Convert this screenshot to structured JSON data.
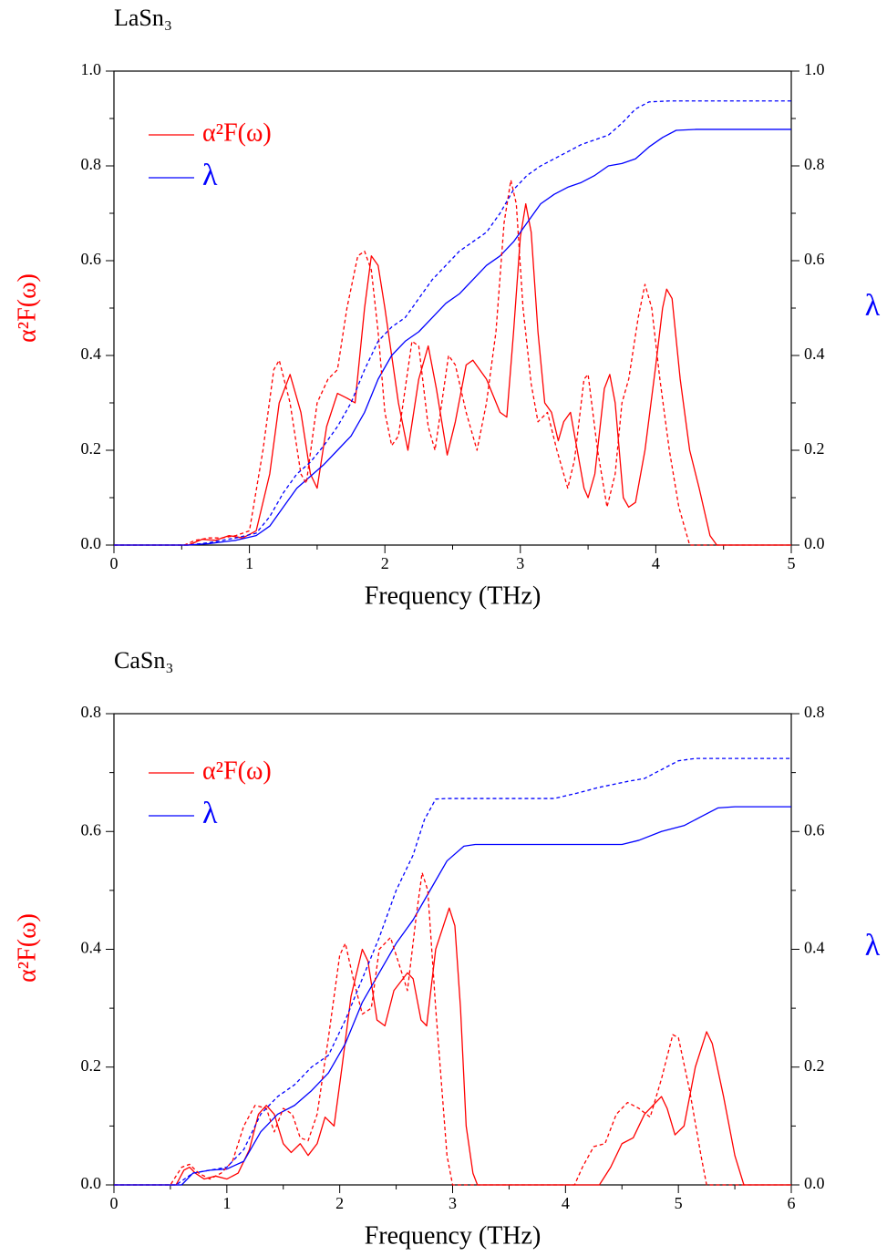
{
  "chart_data": [
    {
      "type": "line",
      "title": "LaSn₃",
      "xlabel": "Frequency (THz)",
      "ylabel": "α²F(ω)",
      "y2label": "λ",
      "xlim": [
        0,
        5
      ],
      "xticks": [
        0,
        1,
        2,
        3,
        4,
        5
      ],
      "ylim": [
        0,
        1
      ],
      "yticks": [
        {
          "value": 0,
          "label": "0.0"
        },
        {
          "value": 0.2,
          "label": "0.2"
        },
        {
          "value": 0.4,
          "label": "0.4"
        },
        {
          "value": 0.6,
          "label": "0.6"
        },
        {
          "value": 0.8,
          "label": "0.8"
        },
        {
          "value": 1,
          "label": "1.0"
        }
      ],
      "y2lim": [
        0,
        1
      ],
      "y2ticks": [
        {
          "value": 0,
          "label": "0.0"
        },
        {
          "value": 0.2,
          "label": "0.2"
        },
        {
          "value": 0.4,
          "label": "0.4"
        },
        {
          "value": 0.6,
          "label": "0.6"
        },
        {
          "value": 0.8,
          "label": "0.8"
        },
        {
          "value": 1,
          "label": "1.0"
        }
      ],
      "series": [
        {
          "name": "α²F(ω)",
          "color": "#ff0000",
          "x": [
            0,
            0.55,
            0.65,
            0.75,
            0.85,
            0.95,
            1.05,
            1.15,
            1.22,
            1.3,
            1.38,
            1.45,
            1.5,
            1.57,
            1.65,
            1.72,
            1.78,
            1.85,
            1.9,
            1.95,
            2.0,
            2.1,
            2.17,
            2.25,
            2.32,
            2.38,
            2.46,
            2.52,
            2.6,
            2.65,
            2.75,
            2.85,
            2.9,
            2.95,
            3.0,
            3.04,
            3.08,
            3.13,
            3.18,
            3.23,
            3.28,
            3.32,
            3.37,
            3.42,
            3.47,
            3.5,
            3.55,
            3.62,
            3.66,
            3.7,
            3.76,
            3.8,
            3.85,
            3.92,
            4.0,
            4.05,
            4.08,
            4.12,
            4.18,
            4.25,
            4.32,
            4.4,
            4.45,
            5
          ],
          "values": [
            0,
            0,
            0.012,
            0.01,
            0.02,
            0.015,
            0.03,
            0.15,
            0.3,
            0.36,
            0.28,
            0.15,
            0.12,
            0.25,
            0.32,
            0.31,
            0.3,
            0.5,
            0.61,
            0.59,
            0.5,
            0.3,
            0.2,
            0.35,
            0.42,
            0.33,
            0.19,
            0.26,
            0.38,
            0.39,
            0.35,
            0.28,
            0.27,
            0.45,
            0.65,
            0.72,
            0.66,
            0.45,
            0.3,
            0.28,
            0.22,
            0.26,
            0.28,
            0.2,
            0.12,
            0.1,
            0.15,
            0.33,
            0.36,
            0.3,
            0.1,
            0.08,
            0.09,
            0.2,
            0.38,
            0.5,
            0.54,
            0.52,
            0.35,
            0.2,
            0.12,
            0.02,
            0,
            0
          ]
        },
        {
          "name": "λ",
          "color": "#0000ff",
          "axis": "y2",
          "x": [
            0,
            0.55,
            0.7,
            0.9,
            1.05,
            1.15,
            1.25,
            1.35,
            1.45,
            1.55,
            1.65,
            1.75,
            1.85,
            1.95,
            2.05,
            2.15,
            2.25,
            2.35,
            2.45,
            2.55,
            2.65,
            2.75,
            2.85,
            2.95,
            3.05,
            3.15,
            3.25,
            3.35,
            3.45,
            3.55,
            3.65,
            3.75,
            3.85,
            3.95,
            4.05,
            4.15,
            4.3,
            5
          ],
          "values": [
            0,
            0,
            0.003,
            0.01,
            0.02,
            0.04,
            0.08,
            0.12,
            0.145,
            0.17,
            0.2,
            0.23,
            0.28,
            0.35,
            0.4,
            0.43,
            0.45,
            0.48,
            0.51,
            0.53,
            0.56,
            0.59,
            0.61,
            0.64,
            0.68,
            0.72,
            0.74,
            0.755,
            0.765,
            0.78,
            0.8,
            0.805,
            0.815,
            0.84,
            0.86,
            0.875,
            0.877,
            0.877
          ]
        },
        {
          "color": "#ff0000",
          "dashed": true,
          "x": [
            0,
            0.52,
            0.6,
            0.7,
            0.8,
            0.9,
            1.0,
            1.1,
            1.18,
            1.22,
            1.3,
            1.38,
            1.42,
            1.5,
            1.58,
            1.65,
            1.72,
            1.8,
            1.85,
            1.9,
            1.95,
            2.0,
            2.05,
            2.1,
            2.2,
            2.25,
            2.32,
            2.37,
            2.47,
            2.52,
            2.6,
            2.68,
            2.75,
            2.82,
            2.88,
            2.93,
            2.97,
            3.02,
            3.08,
            3.13,
            3.2,
            3.27,
            3.35,
            3.4,
            3.47,
            3.5,
            3.57,
            3.64,
            3.7,
            3.75,
            3.8,
            3.87,
            3.92,
            3.97,
            4.03,
            4.1,
            4.17,
            4.25,
            5
          ],
          "values": [
            0,
            0,
            0.01,
            0.015,
            0.015,
            0.02,
            0.03,
            0.2,
            0.37,
            0.39,
            0.3,
            0.15,
            0.13,
            0.3,
            0.35,
            0.37,
            0.5,
            0.61,
            0.62,
            0.58,
            0.45,
            0.28,
            0.21,
            0.23,
            0.43,
            0.42,
            0.25,
            0.2,
            0.4,
            0.38,
            0.28,
            0.2,
            0.3,
            0.45,
            0.68,
            0.77,
            0.72,
            0.5,
            0.34,
            0.26,
            0.28,
            0.2,
            0.12,
            0.18,
            0.35,
            0.36,
            0.2,
            0.08,
            0.15,
            0.3,
            0.35,
            0.48,
            0.55,
            0.5,
            0.35,
            0.2,
            0.08,
            0,
            0
          ]
        },
        {
          "color": "#0000ff",
          "dashed": true,
          "axis": "y2",
          "x": [
            0,
            0.55,
            0.7,
            0.9,
            1.05,
            1.15,
            1.25,
            1.35,
            1.45,
            1.55,
            1.65,
            1.75,
            1.85,
            1.95,
            2.05,
            2.15,
            2.25,
            2.35,
            2.45,
            2.55,
            2.65,
            2.75,
            2.85,
            2.95,
            3.05,
            3.15,
            3.25,
            3.35,
            3.45,
            3.55,
            3.65,
            3.75,
            3.85,
            3.95,
            4.1,
            5
          ],
          "values": [
            0,
            0,
            0.005,
            0.015,
            0.025,
            0.06,
            0.11,
            0.15,
            0.175,
            0.21,
            0.25,
            0.3,
            0.37,
            0.43,
            0.46,
            0.48,
            0.52,
            0.56,
            0.59,
            0.62,
            0.64,
            0.66,
            0.7,
            0.75,
            0.78,
            0.8,
            0.815,
            0.83,
            0.845,
            0.855,
            0.865,
            0.89,
            0.92,
            0.935,
            0.937,
            0.937
          ]
        }
      ]
    },
    {
      "type": "line",
      "title": "CaSn₃",
      "xlabel": "Frequency (THz)",
      "ylabel": "α²F(ω)",
      "y2label": "λ",
      "xlim": [
        0,
        6
      ],
      "xticks": [
        0,
        1,
        2,
        3,
        4,
        5,
        6
      ],
      "ylim": [
        0,
        0.8
      ],
      "yticks": [
        {
          "value": 0,
          "label": "0.0"
        },
        {
          "value": 0.2,
          "label": "0.2"
        },
        {
          "value": 0.4,
          "label": "0.4"
        },
        {
          "value": 0.6,
          "label": "0.6"
        },
        {
          "value": 0.8,
          "label": "0.8"
        }
      ],
      "y2lim": [
        0,
        0.8
      ],
      "y2ticks": [
        {
          "value": 0,
          "label": "0.0"
        },
        {
          "value": 0.2,
          "label": "0.2"
        },
        {
          "value": 0.4,
          "label": "0.4"
        },
        {
          "value": 0.6,
          "label": "0.6"
        },
        {
          "value": 0.8,
          "label": "0.8"
        }
      ],
      "series": [
        {
          "name": "α²F(ω)",
          "color": "#ff0000",
          "x": [
            0,
            0.55,
            0.62,
            0.67,
            0.72,
            0.8,
            0.9,
            1.0,
            1.1,
            1.2,
            1.28,
            1.35,
            1.42,
            1.5,
            1.57,
            1.65,
            1.72,
            1.8,
            1.87,
            1.95,
            2.02,
            2.1,
            2.2,
            2.25,
            2.33,
            2.4,
            2.48,
            2.6,
            2.65,
            2.72,
            2.77,
            2.85,
            2.97,
            3.02,
            3.07,
            3.12,
            3.18,
            3.22,
            4.3,
            4.4,
            4.5,
            4.6,
            4.7,
            4.85,
            4.9,
            4.97,
            5.05,
            5.15,
            5.25,
            5.3,
            5.4,
            5.5,
            5.58,
            6
          ],
          "values": [
            0,
            0,
            0.025,
            0.03,
            0.02,
            0.01,
            0.015,
            0.01,
            0.02,
            0.06,
            0.12,
            0.135,
            0.12,
            0.07,
            0.055,
            0.07,
            0.05,
            0.07,
            0.115,
            0.1,
            0.2,
            0.32,
            0.4,
            0.38,
            0.28,
            0.27,
            0.33,
            0.36,
            0.35,
            0.28,
            0.27,
            0.4,
            0.47,
            0.44,
            0.3,
            0.1,
            0.02,
            0,
            0,
            0.03,
            0.07,
            0.08,
            0.12,
            0.15,
            0.13,
            0.085,
            0.1,
            0.2,
            0.26,
            0.24,
            0.15,
            0.05,
            0,
            0
          ]
        },
        {
          "name": "λ",
          "color": "#0000ff",
          "axis": "y2",
          "x": [
            0,
            0.6,
            0.7,
            0.85,
            1.0,
            1.15,
            1.3,
            1.45,
            1.6,
            1.75,
            1.9,
            2.05,
            2.2,
            2.35,
            2.5,
            2.65,
            2.8,
            2.95,
            3.1,
            3.2,
            4.5,
            4.65,
            4.85,
            5.05,
            5.2,
            5.35,
            5.5,
            6
          ],
          "values": [
            0,
            0,
            0.02,
            0.025,
            0.027,
            0.04,
            0.09,
            0.12,
            0.135,
            0.16,
            0.19,
            0.24,
            0.31,
            0.36,
            0.41,
            0.45,
            0.5,
            0.55,
            0.575,
            0.578,
            0.578,
            0.585,
            0.6,
            0.61,
            0.625,
            0.64,
            0.642,
            0.642
          ]
        },
        {
          "color": "#ff0000",
          "dashed": true,
          "x": [
            0,
            0.5,
            0.6,
            0.67,
            0.75,
            0.85,
            0.95,
            1.05,
            1.15,
            1.25,
            1.35,
            1.42,
            1.5,
            1.58,
            1.65,
            1.72,
            1.8,
            1.9,
            2.0,
            2.05,
            2.12,
            2.2,
            2.28,
            2.35,
            2.45,
            2.55,
            2.6,
            2.68,
            2.73,
            2.78,
            2.85,
            2.95,
            3.0,
            4.08,
            4.15,
            4.25,
            4.35,
            4.45,
            4.55,
            4.65,
            4.75,
            4.85,
            4.95,
            5.0,
            5.1,
            5.2,
            5.25,
            6
          ],
          "values": [
            0,
            0,
            0.03,
            0.035,
            0.02,
            0.01,
            0.02,
            0.04,
            0.1,
            0.135,
            0.13,
            0.09,
            0.13,
            0.12,
            0.08,
            0.075,
            0.12,
            0.25,
            0.39,
            0.41,
            0.35,
            0.29,
            0.3,
            0.4,
            0.42,
            0.36,
            0.33,
            0.46,
            0.53,
            0.5,
            0.3,
            0.05,
            0,
            0,
            0.03,
            0.065,
            0.07,
            0.12,
            0.14,
            0.13,
            0.115,
            0.18,
            0.255,
            0.25,
            0.16,
            0.05,
            0,
            0
          ]
        },
        {
          "color": "#0000ff",
          "dashed": true,
          "axis": "y2",
          "x": [
            0,
            0.55,
            0.7,
            0.85,
            1.0,
            1.15,
            1.3,
            1.45,
            1.6,
            1.75,
            1.9,
            2.05,
            2.2,
            2.35,
            2.5,
            2.65,
            2.75,
            2.85,
            2.95,
            3.9,
            4.1,
            4.3,
            4.55,
            4.7,
            4.85,
            5.0,
            5.15,
            6
          ],
          "values": [
            0,
            0,
            0.02,
            0.025,
            0.03,
            0.06,
            0.12,
            0.15,
            0.17,
            0.2,
            0.22,
            0.28,
            0.35,
            0.42,
            0.5,
            0.56,
            0.62,
            0.655,
            0.656,
            0.656,
            0.665,
            0.675,
            0.685,
            0.69,
            0.705,
            0.72,
            0.724,
            0.724
          ]
        }
      ]
    }
  ]
}
